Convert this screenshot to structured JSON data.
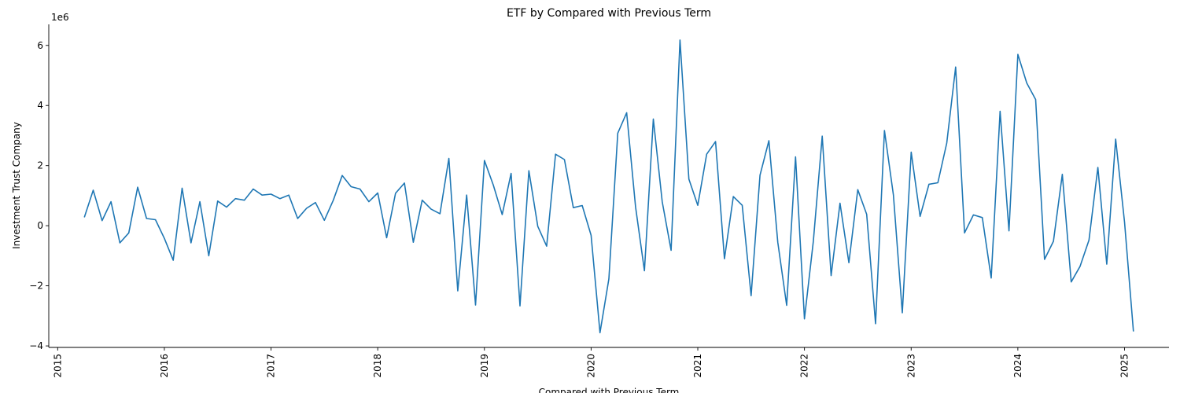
{
  "chart_data": {
    "type": "line",
    "title": "ETF by Compared with Previous Term",
    "xlabel": "Compared with Previous Term",
    "ylabel": "Investment Trust Company",
    "y_scale_label": "1e6",
    "y_tick_values": [
      -4,
      -2,
      0,
      2,
      4,
      6
    ],
    "y_tick_labels": [
      "−4",
      "−2",
      "0",
      "2",
      "4",
      "6"
    ],
    "ylim": [
      -4.05,
      6.7
    ],
    "x_tick_labels": [
      "2015",
      "2016",
      "2017",
      "2018",
      "2019",
      "2020",
      "2021",
      "2022",
      "2023",
      "2024",
      "2025"
    ],
    "xlim": [
      "2014-12",
      "2025-06"
    ],
    "grid": false,
    "color": "#1f77b4",
    "series": [
      {
        "x": [
          "2015-04",
          "2015-05",
          "2015-06",
          "2015-07",
          "2015-08",
          "2015-09",
          "2015-10",
          "2015-11",
          "2015-12",
          "2016-01",
          "2016-02",
          "2016-03",
          "2016-04",
          "2016-05",
          "2016-06",
          "2016-07",
          "2016-08",
          "2016-09",
          "2016-10",
          "2016-11",
          "2016-12",
          "2017-01",
          "2017-02",
          "2017-03",
          "2017-04",
          "2017-05",
          "2017-06",
          "2017-07",
          "2017-08",
          "2017-09",
          "2017-10",
          "2017-11",
          "2017-12",
          "2018-01",
          "2018-02",
          "2018-03",
          "2018-04",
          "2018-05",
          "2018-06",
          "2018-07",
          "2018-08",
          "2018-09",
          "2018-10",
          "2018-11",
          "2018-12",
          "2019-01",
          "2019-02",
          "2019-03",
          "2019-04",
          "2019-05",
          "2019-06",
          "2019-07",
          "2019-08",
          "2019-09",
          "2019-10",
          "2019-11",
          "2019-12",
          "2020-01",
          "2020-02",
          "2020-03",
          "2020-04",
          "2020-05",
          "2020-06",
          "2020-07",
          "2020-08",
          "2020-09",
          "2020-10",
          "2020-11",
          "2020-12",
          "2021-01",
          "2021-02",
          "2021-03",
          "2021-04",
          "2021-05",
          "2021-06",
          "2021-07",
          "2021-08",
          "2021-09",
          "2021-10",
          "2021-11",
          "2021-12",
          "2022-01",
          "2022-02",
          "2022-03",
          "2022-04",
          "2022-05",
          "2022-06",
          "2022-07",
          "2022-08",
          "2022-09",
          "2022-10",
          "2022-11",
          "2022-12",
          "2023-01",
          "2023-02",
          "2023-03",
          "2023-04",
          "2023-05",
          "2023-06",
          "2023-07",
          "2023-08",
          "2023-09",
          "2023-10",
          "2023-11",
          "2023-12",
          "2024-01",
          "2024-02",
          "2024-03",
          "2024-04",
          "2024-05",
          "2024-06",
          "2024-07",
          "2024-08",
          "2024-09",
          "2024-10",
          "2024-11",
          "2024-12",
          "2025-01",
          "2025-02"
        ],
        "y": [
          0.28,
          1.18,
          0.17,
          0.8,
          -0.57,
          -0.24,
          1.28,
          0.24,
          0.2,
          -0.42,
          -1.15,
          1.25,
          -0.57,
          0.8,
          -1.0,
          0.82,
          0.62,
          0.9,
          0.85,
          1.22,
          1.02,
          1.05,
          0.9,
          1.02,
          0.24,
          0.58,
          0.77,
          0.18,
          0.85,
          1.67,
          1.3,
          1.22,
          0.8,
          1.09,
          -0.4,
          1.08,
          1.42,
          -0.55,
          0.85,
          0.55,
          0.4,
          2.24,
          -2.17,
          1.02,
          -2.64,
          2.17,
          1.35,
          0.37,
          1.74,
          -2.67,
          1.83,
          -0.02,
          -0.68,
          2.38,
          2.2,
          0.6,
          0.67,
          -0.32,
          -3.56,
          -1.77,
          3.08,
          3.76,
          0.63,
          -1.5,
          3.55,
          0.8,
          -0.82,
          6.18,
          1.55,
          0.68,
          2.38,
          2.8,
          -1.1,
          0.97,
          0.68,
          -2.33,
          1.68,
          2.83,
          -0.55,
          -2.65,
          2.29,
          -3.1,
          -0.52,
          2.98,
          -1.66,
          0.75,
          -1.23,
          1.2,
          0.38,
          -3.26,
          3.17,
          1.02,
          -2.9,
          2.45,
          0.31,
          1.38,
          1.43,
          2.75,
          5.28,
          -0.24,
          0.36,
          0.27,
          -1.74,
          3.81,
          -0.17,
          5.7,
          4.75,
          4.2,
          -1.12,
          -0.52,
          1.71,
          -1.87,
          -1.35,
          -0.48,
          1.94,
          -1.28,
          2.88,
          0.12,
          -3.52
        ]
      }
    ]
  }
}
